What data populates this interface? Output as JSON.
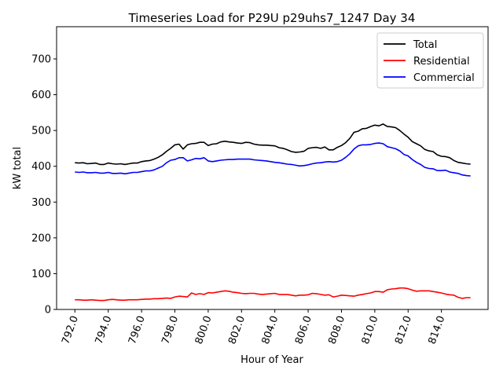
{
  "chart_data": {
    "type": "line",
    "title": "Timeseries Load for P29U p29uhs7_1247  Day 34",
    "xlabel": "Hour of Year",
    "ylabel": "kW total",
    "xlim": [
      790.9,
      816.8
    ],
    "ylim": [
      0,
      790
    ],
    "xticks": [
      792.0,
      794.0,
      796.0,
      798.0,
      800.0,
      802.0,
      804.0,
      806.0,
      808.0,
      810.0,
      812.0,
      814.0
    ],
    "xtick_labels": [
      "792.0",
      "794.0",
      "796.0",
      "798.0",
      "800.0",
      "802.0",
      "804.0",
      "806.0",
      "808.0",
      "810.0",
      "812.0",
      "814.0"
    ],
    "yticks": [
      0,
      100,
      200,
      300,
      400,
      500,
      600,
      700
    ],
    "ytick_labels": [
      "0",
      "100",
      "200",
      "300",
      "400",
      "500",
      "600",
      "700"
    ],
    "legend_position": "upper right",
    "x": [
      792.0,
      792.25,
      792.5,
      792.75,
      793.0,
      793.25,
      793.5,
      793.75,
      794.0,
      794.25,
      794.5,
      794.75,
      795.0,
      795.25,
      795.5,
      795.75,
      796.0,
      796.25,
      796.5,
      796.75,
      797.0,
      797.25,
      797.5,
      797.75,
      798.0,
      798.25,
      798.5,
      798.75,
      799.0,
      799.25,
      799.5,
      799.75,
      800.0,
      800.25,
      800.5,
      800.75,
      801.0,
      801.25,
      801.5,
      801.75,
      802.0,
      802.25,
      802.5,
      802.75,
      803.0,
      803.25,
      803.5,
      803.75,
      804.0,
      804.25,
      804.5,
      804.75,
      805.0,
      805.25,
      805.5,
      805.75,
      806.0,
      806.25,
      806.5,
      806.75,
      807.0,
      807.25,
      807.5,
      807.75,
      808.0,
      808.25,
      808.5,
      808.75,
      809.0,
      809.25,
      809.5,
      809.75,
      810.0,
      810.25,
      810.5,
      810.75,
      811.0,
      811.25,
      811.5,
      811.75,
      812.0,
      812.25,
      812.5,
      812.75,
      813.0,
      813.25,
      813.5,
      813.75,
      814.0,
      814.25,
      814.5,
      814.75,
      815.0,
      815.25,
      815.5,
      815.75
    ],
    "series": [
      {
        "name": "Total",
        "color": "#000000",
        "values": [
          410,
          409,
          410,
          407,
          408,
          409,
          405,
          405,
          409,
          407,
          406,
          407,
          405,
          407,
          409,
          409,
          413,
          415,
          416,
          420,
          425,
          432,
          442,
          450,
          460,
          462,
          448,
          460,
          463,
          464,
          467,
          467,
          458,
          462,
          463,
          468,
          470,
          468,
          467,
          465,
          464,
          467,
          466,
          462,
          460,
          459,
          459,
          458,
          457,
          452,
          450,
          446,
          441,
          439,
          440,
          442,
          450,
          452,
          453,
          450,
          454,
          446,
          446,
          453,
          458,
          466,
          478,
          495,
          498,
          505,
          506,
          511,
          515,
          513,
          518,
          511,
          510,
          508,
          500,
          490,
          481,
          469,
          463,
          457,
          447,
          443,
          441,
          432,
          428,
          427,
          424,
          416,
          411,
          409,
          407,
          406
        ]
      },
      {
        "name": "Residential",
        "color": "#ff0000",
        "values": [
          27,
          27,
          26,
          26,
          27,
          26,
          25,
          25,
          27,
          28,
          27,
          26,
          26,
          27,
          27,
          27,
          28,
          29,
          29,
          30,
          30,
          31,
          32,
          31,
          35,
          37,
          36,
          35,
          46,
          42,
          44,
          42,
          47,
          46,
          48,
          50,
          52,
          51,
          48,
          47,
          45,
          44,
          45,
          45,
          43,
          42,
          43,
          44,
          45,
          42,
          42,
          42,
          40,
          38,
          40,
          40,
          41,
          45,
          44,
          42,
          40,
          41,
          35,
          37,
          40,
          39,
          38,
          37,
          40,
          42,
          44,
          46,
          50,
          50,
          48,
          55,
          57,
          58,
          60,
          60,
          58,
          54,
          51,
          52,
          52,
          52,
          50,
          48,
          46,
          43,
          41,
          40,
          34,
          31,
          33,
          33
        ]
      },
      {
        "name": "Commercial",
        "color": "#0000ff",
        "values": [
          384,
          383,
          384,
          382,
          382,
          383,
          381,
          381,
          383,
          380,
          380,
          381,
          379,
          381,
          383,
          383,
          385,
          387,
          387,
          390,
          395,
          400,
          410,
          417,
          419,
          424,
          424,
          415,
          418,
          422,
          421,
          424,
          415,
          413,
          415,
          417,
          418,
          419,
          419,
          420,
          420,
          420,
          420,
          418,
          417,
          416,
          415,
          413,
          411,
          410,
          408,
          406,
          405,
          403,
          401,
          402,
          404,
          407,
          409,
          410,
          412,
          413,
          412,
          413,
          417,
          425,
          435,
          448,
          457,
          460,
          460,
          461,
          464,
          465,
          463,
          455,
          452,
          449,
          443,
          433,
          429,
          419,
          411,
          405,
          397,
          394,
          393,
          388,
          388,
          389,
          384,
          382,
          380,
          376,
          374,
          373
        ]
      }
    ]
  }
}
